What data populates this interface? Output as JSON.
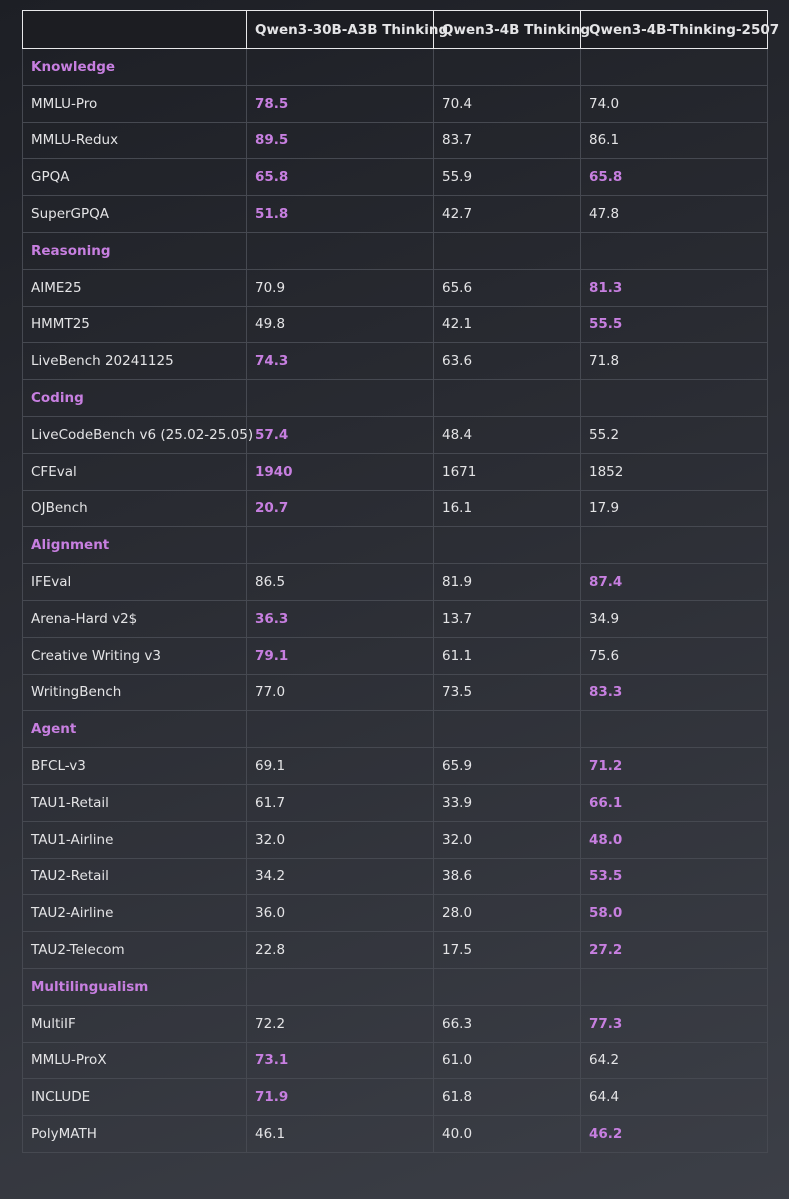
{
  "highlight_color": "#c77fe0",
  "table": {
    "header": [
      "",
      "Qwen3-30B-A3B Thinking",
      "Qwen3-4B Thinking",
      "Qwen3-4B-Thinking-2507"
    ],
    "sections": [
      {
        "title": "Knowledge",
        "rows": [
          {
            "cells": [
              "MMLU-Pro",
              "78.5",
              "70.4",
              "74.0"
            ],
            "bold": [
              1
            ]
          },
          {
            "cells": [
              "MMLU-Redux",
              "89.5",
              "83.7",
              "86.1"
            ],
            "bold": [
              1
            ]
          },
          {
            "cells": [
              "GPQA",
              "65.8",
              "55.9",
              "65.8"
            ],
            "bold": [
              1,
              3
            ]
          },
          {
            "cells": [
              "SuperGPQA",
              "51.8",
              "42.7",
              "47.8"
            ],
            "bold": [
              1
            ]
          }
        ]
      },
      {
        "title": "Reasoning",
        "rows": [
          {
            "cells": [
              "AIME25",
              "70.9",
              "65.6",
              "81.3"
            ],
            "bold": [
              3
            ]
          },
          {
            "cells": [
              "HMMT25",
              "49.8",
              "42.1",
              "55.5"
            ],
            "bold": [
              3
            ]
          },
          {
            "cells": [
              "LiveBench 20241125",
              "74.3",
              "63.6",
              "71.8"
            ],
            "bold": [
              1
            ]
          }
        ]
      },
      {
        "title": "Coding",
        "rows": [
          {
            "cells": [
              "LiveCodeBench v6 (25.02-25.05)",
              "57.4",
              "48.4",
              "55.2"
            ],
            "bold": [
              1
            ]
          },
          {
            "cells": [
              "CFEval",
              "1940",
              "1671",
              "1852"
            ],
            "bold": [
              1
            ]
          },
          {
            "cells": [
              "OJBench",
              "20.7",
              "16.1",
              "17.9"
            ],
            "bold": [
              1
            ]
          }
        ]
      },
      {
        "title": "Alignment",
        "rows": [
          {
            "cells": [
              "IFEval",
              "86.5",
              "81.9",
              "87.4"
            ],
            "bold": [
              3
            ]
          },
          {
            "cells": [
              "Arena-Hard v2$",
              "36.3",
              "13.7",
              "34.9"
            ],
            "bold": [
              1
            ]
          },
          {
            "cells": [
              "Creative Writing v3",
              "79.1",
              "61.1",
              "75.6"
            ],
            "bold": [
              1
            ]
          },
          {
            "cells": [
              "WritingBench",
              "77.0",
              "73.5",
              "83.3"
            ],
            "bold": [
              3
            ]
          }
        ]
      },
      {
        "title": "Agent",
        "rows": [
          {
            "cells": [
              "BFCL-v3",
              "69.1",
              "65.9",
              "71.2"
            ],
            "bold": [
              3
            ]
          },
          {
            "cells": [
              "TAU1-Retail",
              "61.7",
              "33.9",
              "66.1"
            ],
            "bold": [
              3
            ]
          },
          {
            "cells": [
              "TAU1-Airline",
              "32.0",
              "32.0",
              "48.0"
            ],
            "bold": [
              3
            ]
          },
          {
            "cells": [
              "TAU2-Retail",
              "34.2",
              "38.6",
              "53.5"
            ],
            "bold": [
              3
            ]
          },
          {
            "cells": [
              "TAU2-Airline",
              "36.0",
              "28.0",
              "58.0"
            ],
            "bold": [
              3
            ]
          },
          {
            "cells": [
              "TAU2-Telecom",
              "22.8",
              "17.5",
              "27.2"
            ],
            "bold": [
              3
            ]
          }
        ]
      },
      {
        "title": "Multilingualism",
        "rows": [
          {
            "cells": [
              "MultiIF",
              "72.2",
              "66.3",
              "77.3"
            ],
            "bold": [
              3
            ]
          },
          {
            "cells": [
              "MMLU-ProX",
              "73.1",
              "61.0",
              "64.2"
            ],
            "bold": [
              1
            ]
          },
          {
            "cells": [
              "INCLUDE",
              "71.9",
              "61.8",
              "64.4"
            ],
            "bold": [
              1
            ]
          },
          {
            "cells": [
              "PolyMATH",
              "46.1",
              "40.0",
              "46.2"
            ],
            "bold": [
              3
            ]
          }
        ]
      }
    ]
  }
}
